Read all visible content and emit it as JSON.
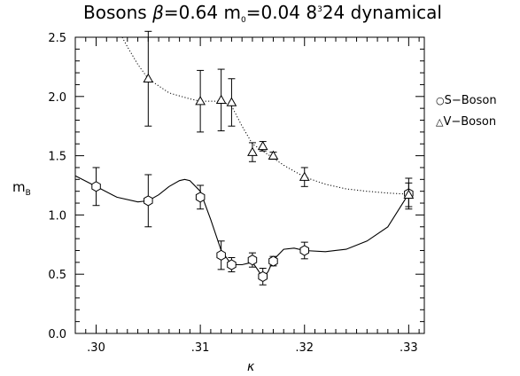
{
  "chart_data": {
    "type": "scatter",
    "title": {
      "prefix": "Bosons  ",
      "beta_symbol": "β",
      "beta_value": "=0.64  m",
      "m_sub": "0",
      "m_value": "=0.04  8",
      "sup": "3",
      "suffix": "24  dynamical"
    },
    "xlabel": "κ",
    "ylabel": {
      "main": "m",
      "sub": "B"
    },
    "xlim": [
      0.298,
      0.3315
    ],
    "ylim": [
      0.0,
      2.5
    ],
    "x_ticks": [
      {
        "value": 0.3,
        "label": ".30"
      },
      {
        "value": 0.31,
        "label": ".31"
      },
      {
        "value": 0.32,
        "label": ".32"
      },
      {
        "value": 0.33,
        "label": ".33"
      }
    ],
    "y_ticks": [
      {
        "value": 0.0,
        "label": "0.0"
      },
      {
        "value": 0.5,
        "label": "0.5"
      },
      {
        "value": 1.0,
        "label": "1.0"
      },
      {
        "value": 1.5,
        "label": "1.5"
      },
      {
        "value": 2.0,
        "label": "2.0"
      },
      {
        "value": 2.5,
        "label": "2.5"
      }
    ],
    "grid": false,
    "legend_position": "right",
    "series": [
      {
        "name": "S−Boson",
        "legend_symbol": "○",
        "marker": "hexagon",
        "line_style": "solid",
        "points": [
          {
            "x": 0.3,
            "y": 1.24,
            "err": 0.16
          },
          {
            "x": 0.305,
            "y": 1.12,
            "err": 0.22
          },
          {
            "x": 0.31,
            "y": 1.15,
            "err": 0.1
          },
          {
            "x": 0.312,
            "y": 0.66,
            "err": 0.12
          },
          {
            "x": 0.313,
            "y": 0.58,
            "err": 0.06
          },
          {
            "x": 0.315,
            "y": 0.62,
            "err": 0.06
          },
          {
            "x": 0.316,
            "y": 0.48,
            "err": 0.07
          },
          {
            "x": 0.317,
            "y": 0.61,
            "err": 0.04
          },
          {
            "x": 0.32,
            "y": 0.7,
            "err": 0.07
          },
          {
            "x": 0.33,
            "y": 1.18,
            "err": 0.13
          }
        ],
        "curve": [
          [
            0.298,
            1.33
          ],
          [
            0.3,
            1.24
          ],
          [
            0.302,
            1.15
          ],
          [
            0.304,
            1.11
          ],
          [
            0.305,
            1.12
          ],
          [
            0.306,
            1.17
          ],
          [
            0.307,
            1.24
          ],
          [
            0.308,
            1.29
          ],
          [
            0.3085,
            1.3
          ],
          [
            0.309,
            1.29
          ],
          [
            0.31,
            1.2
          ],
          [
            0.311,
            0.96
          ],
          [
            0.312,
            0.7
          ],
          [
            0.313,
            0.58
          ],
          [
            0.314,
            0.58
          ],
          [
            0.315,
            0.6
          ],
          [
            0.3155,
            0.54
          ],
          [
            0.316,
            0.47
          ],
          [
            0.3165,
            0.52
          ],
          [
            0.317,
            0.62
          ],
          [
            0.318,
            0.71
          ],
          [
            0.319,
            0.72
          ],
          [
            0.32,
            0.7
          ],
          [
            0.322,
            0.69
          ],
          [
            0.324,
            0.71
          ],
          [
            0.326,
            0.78
          ],
          [
            0.328,
            0.9
          ],
          [
            0.33,
            1.18
          ]
        ]
      },
      {
        "name": "V−Boson",
        "legend_symbol": "△",
        "marker": "triangle",
        "line_style": "dotted",
        "points": [
          {
            "x": 0.305,
            "y": 2.15,
            "err": 0.4
          },
          {
            "x": 0.31,
            "y": 1.96,
            "err": 0.26
          },
          {
            "x": 0.312,
            "y": 1.97,
            "err": 0.26
          },
          {
            "x": 0.313,
            "y": 1.95,
            "err": 0.2
          },
          {
            "x": 0.315,
            "y": 1.53,
            "err": 0.08
          },
          {
            "x": 0.316,
            "y": 1.58,
            "err": 0.04
          },
          {
            "x": 0.317,
            "y": 1.5,
            "err": 0.03
          },
          {
            "x": 0.32,
            "y": 1.32,
            "err": 0.08
          },
          {
            "x": 0.33,
            "y": 1.17,
            "err": 0.1
          }
        ],
        "curve": [
          [
            0.3025,
            2.5
          ],
          [
            0.303,
            2.42
          ],
          [
            0.304,
            2.27
          ],
          [
            0.305,
            2.15
          ],
          [
            0.307,
            2.03
          ],
          [
            0.309,
            1.98
          ],
          [
            0.31,
            1.96
          ],
          [
            0.311,
            1.96
          ],
          [
            0.312,
            1.96
          ],
          [
            0.313,
            1.92
          ],
          [
            0.314,
            1.75
          ],
          [
            0.315,
            1.6
          ],
          [
            0.316,
            1.54
          ],
          [
            0.317,
            1.48
          ],
          [
            0.318,
            1.42
          ],
          [
            0.319,
            1.37
          ],
          [
            0.32,
            1.32
          ],
          [
            0.322,
            1.26
          ],
          [
            0.324,
            1.22
          ],
          [
            0.326,
            1.2
          ],
          [
            0.328,
            1.185
          ],
          [
            0.33,
            1.175
          ]
        ]
      }
    ]
  }
}
